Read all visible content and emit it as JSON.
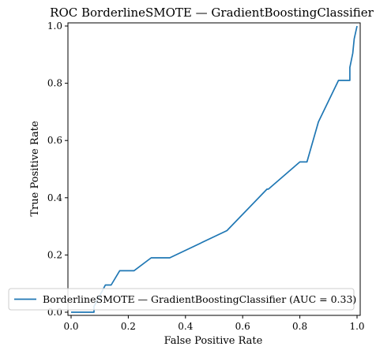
{
  "chart_data": {
    "type": "line",
    "title": "ROC BorderlineSMOTE — GradientBoostingClassifier",
    "xlabel": "False Positive Rate",
    "ylabel": "True Positive Rate",
    "xlim": [
      0,
      1
    ],
    "ylim": [
      0,
      1
    ],
    "xticks": [
      "0.0",
      "0.2",
      "0.4",
      "0.6",
      "0.8",
      "1.0"
    ],
    "yticks": [
      "0.0",
      "0.2",
      "0.4",
      "0.6",
      "0.8",
      "1.0"
    ],
    "grid": false,
    "legend": {
      "position": "lower-right"
    },
    "series": [
      {
        "name": "BorderlineSMOTE — GradientBoostingClassifier (AUC = 0.33)",
        "color": "#1f77b4",
        "x": [
          0.0,
          0.08,
          0.08,
          0.12,
          0.14,
          0.17,
          0.22,
          0.28,
          0.345,
          0.545,
          0.685,
          0.69,
          0.8,
          0.825,
          0.865,
          0.935,
          0.975,
          0.975,
          0.985,
          0.99,
          1.0
        ],
        "y": [
          0.0,
          0.0,
          0.02,
          0.095,
          0.095,
          0.145,
          0.145,
          0.19,
          0.19,
          0.285,
          0.43,
          0.43,
          0.525,
          0.525,
          0.665,
          0.81,
          0.81,
          0.855,
          0.905,
          0.955,
          1.0
        ]
      }
    ]
  }
}
